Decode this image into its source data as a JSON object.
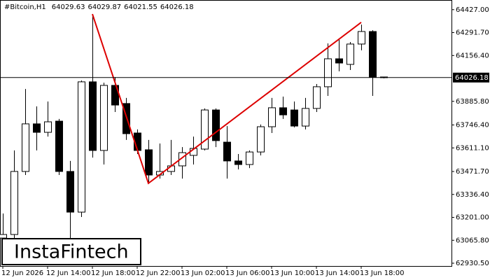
{
  "chart_data": {
    "type": "candlestick",
    "symbol": "#Bitcoin,H1",
    "watermark": "InstaFintech",
    "categories": [
      "12 Jun 2026",
      null,
      null,
      null,
      "12 Jun 14:00",
      null,
      null,
      null,
      "12 Jun 18:00",
      null,
      null,
      null,
      "12 Jun 22:00",
      null,
      null,
      null,
      "13 Jun 02:00",
      null,
      null,
      null,
      "13 Jun 06:00",
      null,
      null,
      null,
      "13 Jun 10:00",
      null,
      null,
      null,
      "13 Jun 14:00",
      null,
      null,
      null,
      "13 Jun 18:00",
      null,
      null
    ],
    "open": [
      63079,
      63100,
      63472,
      63753,
      63703,
      63769,
      63472,
      63232,
      64001,
      63596,
      63980,
      63873,
      63699,
      63600,
      63451,
      63472,
      63505,
      63567,
      63604,
      63835,
      63645,
      63534,
      63513,
      63587,
      63736,
      63848,
      63835,
      63740,
      63844,
      63972,
      64137,
      64104,
      64224,
      64298,
      64029.63
    ],
    "high": [
      63224,
      63596,
      63959,
      63856,
      63885,
      63782,
      63534,
      64009,
      64401,
      63996,
      64029,
      63906,
      63720,
      63658,
      63637,
      63658,
      63616,
      63678,
      63844,
      63844,
      63740,
      63575,
      63596,
      63749,
      63906,
      63914,
      63885,
      63906,
      63988,
      64228,
      64257,
      64236,
      64339,
      64306,
      64029.87
    ],
    "low": [
      63058,
      63079,
      63451,
      63596,
      63678,
      63451,
      63079,
      63203,
      63554,
      63513,
      63823,
      63658,
      63575,
      63402,
      63430,
      63451,
      63430,
      63513,
      63596,
      63616,
      63430,
      63484,
      63492,
      63567,
      63699,
      63782,
      63732,
      63720,
      63823,
      63918,
      64063,
      64071,
      64187,
      63918,
      64021.55
    ],
    "close": [
      63100,
      63472,
      63753,
      63703,
      63765,
      63472,
      63232,
      64001,
      63596,
      63980,
      63864,
      63695,
      63596,
      63451,
      63472,
      63505,
      63583,
      63608,
      63835,
      63654,
      63534,
      63513,
      63587,
      63736,
      63848,
      63806,
      63740,
      63844,
      63972,
      64137,
      64112,
      64224,
      64298,
      64029,
      64026.18
    ],
    "up_color": "#ffffff",
    "down_color": "#000000",
    "pattern": {
      "color": "#dd0000",
      "at": [
        8,
        13,
        32
      ],
      "values": [
        64401,
        63402,
        64352
      ]
    },
    "ylim": [
      62914,
      64484
    ],
    "yticks": [
      {
        "value": 64427,
        "label": "64427.00"
      },
      {
        "value": 64291.7,
        "label": "64291.70"
      },
      {
        "value": 64156.4,
        "label": "64156.40"
      },
      {
        "value": 63885.8,
        "label": "63885.80"
      },
      {
        "value": 63746.4,
        "label": "63746.40"
      },
      {
        "value": 63611.1,
        "label": "63611.10"
      },
      {
        "value": 63471.7,
        "label": "63471.70"
      },
      {
        "value": 63336.4,
        "label": "63336.40"
      },
      {
        "value": 63201,
        "label": "63201.00"
      },
      {
        "value": 63065.8,
        "label": "63065.80"
      },
      {
        "value": 62930.5,
        "label": "62930.50"
      }
    ]
  }
}
